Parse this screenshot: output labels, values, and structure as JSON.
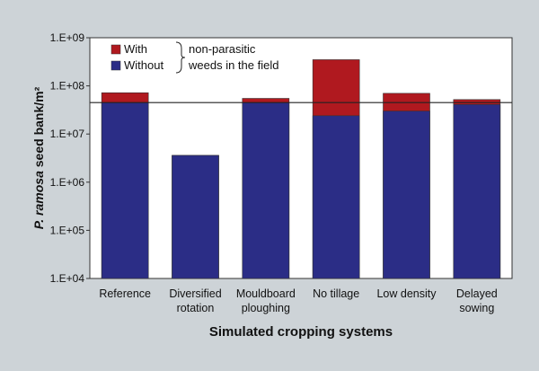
{
  "chart_data": {
    "type": "bar",
    "stacked": true,
    "yscale": "log",
    "ylim": [
      10000,
      1000000000
    ],
    "yticks": [
      "1.E+04",
      "1.E+05",
      "1.E+06",
      "1.E+07",
      "1.E+08",
      "1.E+09"
    ],
    "ytick_values": [
      10000,
      100000,
      1000000,
      10000000,
      100000000,
      1000000000
    ],
    "categories": [
      [
        "Reference"
      ],
      [
        "Diversified",
        "rotation"
      ],
      [
        "Mouldboard",
        "ploughing"
      ],
      [
        "No tillage"
      ],
      [
        "Low density"
      ],
      [
        "Delayed",
        "sowing"
      ]
    ],
    "series": [
      {
        "name": "Without",
        "color": "#2b2d86",
        "values": [
          45000000,
          3600000,
          45000000,
          24000000,
          30000000,
          41000000
        ]
      },
      {
        "name": "With",
        "color": "#b0191f",
        "values": [
          72000000,
          3600000,
          55000000,
          350000000,
          70000000,
          52000000
        ]
      }
    ],
    "reference_line": 45000000,
    "xlabel": "Simulated cropping systems",
    "ylabel_italic": "P. ramosa",
    "ylabel_rest": " seed bank/m²",
    "legend": {
      "position": "top-left",
      "items": [
        {
          "label": "With",
          "color": "#b0191f"
        },
        {
          "label": "Without",
          "color": "#2b2d86"
        }
      ],
      "brace_text": [
        "non-parasitic",
        "weeds in the field"
      ]
    },
    "grid": false
  }
}
